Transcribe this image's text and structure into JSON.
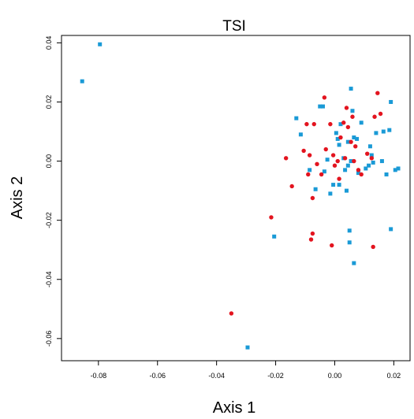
{
  "chart_data": {
    "type": "scatter",
    "title": "TSI",
    "xlabel": "Axis 1",
    "ylabel": "Axis 2",
    "xlim": [
      -0.0925,
      0.0255
    ],
    "ylim": [
      -0.0675,
      0.0425
    ],
    "xticks": [
      -0.08,
      -0.06,
      -0.04,
      -0.02,
      0.0,
      0.02
    ],
    "xtick_labels": [
      "-0.08",
      "-0.06",
      "-0.04",
      "-0.02",
      "0.00",
      "0.02"
    ],
    "yticks": [
      -0.06,
      -0.04,
      -0.02,
      0.0,
      0.02,
      0.04
    ],
    "ytick_labels": [
      "-0.06",
      "-0.04",
      "-0.02",
      "0.00",
      "0.02",
      "0.04"
    ],
    "grid": false,
    "series": [
      {
        "color": "#1a9ad6",
        "marker": "square",
        "points": [
          [
            -0.0855,
            0.027
          ],
          [
            -0.0795,
            0.0395
          ],
          [
            -0.0295,
            -0.063
          ],
          [
            -0.0205,
            -0.0255
          ],
          [
            -0.013,
            0.0145
          ],
          [
            -0.0115,
            0.009
          ],
          [
            -0.0085,
            -0.003
          ],
          [
            -0.0065,
            -0.0095
          ],
          [
            -0.005,
            0.0185
          ],
          [
            -0.004,
            0.0185
          ],
          [
            -0.0035,
            -0.0035
          ],
          [
            -0.0025,
            0.0005
          ],
          [
            -0.0015,
            -0.011
          ],
          [
            -0.0005,
            -0.008
          ],
          [
            0.0005,
            0.0095
          ],
          [
            0.001,
            0.0075
          ],
          [
            0.0015,
            0.0055
          ],
          [
            0.0015,
            -0.008
          ],
          [
            0.002,
            0.0125
          ],
          [
            0.003,
            0.001
          ],
          [
            0.0035,
            -0.003
          ],
          [
            0.004,
            -0.01
          ],
          [
            0.0045,
            -0.0015
          ],
          [
            0.0045,
            0.0065
          ],
          [
            0.005,
            -0.0235
          ],
          [
            0.005,
            -0.0275
          ],
          [
            0.0055,
            0.0245
          ],
          [
            0.0055,
            0.0
          ],
          [
            0.006,
            0.017
          ],
          [
            0.0065,
            0.008
          ],
          [
            0.0065,
            -0.0345
          ],
          [
            0.0075,
            0.0075
          ],
          [
            0.008,
            -0.004
          ],
          [
            0.009,
            0.013
          ],
          [
            0.0105,
            -0.0025
          ],
          [
            0.0115,
            -0.0015
          ],
          [
            0.012,
            0.005
          ],
          [
            0.0125,
            0.002
          ],
          [
            0.013,
            -0.0005
          ],
          [
            0.014,
            0.0095
          ],
          [
            0.016,
            0.0
          ],
          [
            0.0165,
            0.01
          ],
          [
            0.0175,
            -0.0045
          ],
          [
            0.0185,
            0.0105
          ],
          [
            0.019,
            0.02
          ],
          [
            0.019,
            -0.023
          ],
          [
            0.0205,
            -0.003
          ],
          [
            0.0215,
            -0.0025
          ]
        ]
      },
      {
        "color": "#e3141f",
        "marker": "circle",
        "points": [
          [
            -0.035,
            -0.0515
          ],
          [
            -0.0215,
            -0.019
          ],
          [
            -0.0165,
            0.001
          ],
          [
            -0.0145,
            -0.0085
          ],
          [
            -0.0105,
            0.0035
          ],
          [
            -0.0095,
            0.0125
          ],
          [
            -0.009,
            -0.0045
          ],
          [
            -0.0085,
            0.002
          ],
          [
            -0.008,
            -0.0265
          ],
          [
            -0.0075,
            -0.0245
          ],
          [
            -0.0075,
            -0.0125
          ],
          [
            -0.007,
            0.0125
          ],
          [
            -0.006,
            -0.001
          ],
          [
            -0.0045,
            -0.0045
          ],
          [
            -0.0035,
            0.0215
          ],
          [
            -0.003,
            0.004
          ],
          [
            -0.0015,
            0.0125
          ],
          [
            -0.001,
            -0.0285
          ],
          [
            -0.0005,
            0.002
          ],
          [
            0.0,
            -0.0015
          ],
          [
            0.001,
            0.0
          ],
          [
            0.0015,
            -0.006
          ],
          [
            0.002,
            0.008
          ],
          [
            0.003,
            0.013
          ],
          [
            0.0035,
            0.001
          ],
          [
            0.004,
            0.018
          ],
          [
            0.0045,
            0.0115
          ],
          [
            0.0055,
            0.0065
          ],
          [
            0.006,
            0.015
          ],
          [
            0.0065,
            0.0
          ],
          [
            0.007,
            0.005
          ],
          [
            0.008,
            -0.003
          ],
          [
            0.009,
            -0.0045
          ],
          [
            0.011,
            0.0025
          ],
          [
            0.0125,
            0.001
          ],
          [
            0.013,
            -0.029
          ],
          [
            0.0135,
            0.015
          ],
          [
            0.0145,
            0.023
          ],
          [
            0.0155,
            0.016
          ]
        ]
      }
    ]
  }
}
